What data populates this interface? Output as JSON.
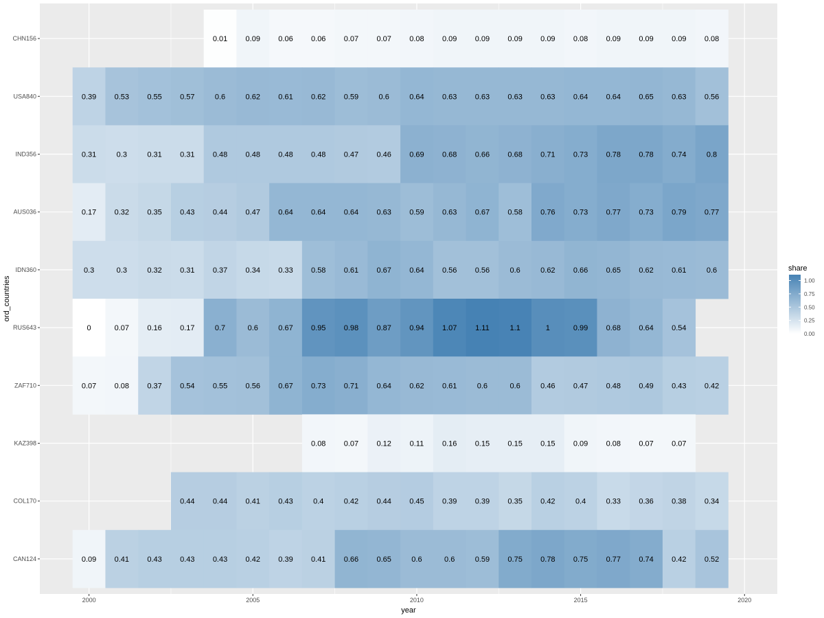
{
  "chart_data": {
    "type": "heatmap",
    "xlabel": "year",
    "ylabel": "ord_countries",
    "xlim": [
      1998.5,
      2021
    ],
    "x_ticks": [
      2000,
      2005,
      2010,
      2015,
      2020
    ],
    "years": [
      2000,
      2001,
      2002,
      2003,
      2004,
      2005,
      2006,
      2007,
      2008,
      2009,
      2010,
      2011,
      2012,
      2013,
      2014,
      2015,
      2016,
      2017,
      2018,
      2019
    ],
    "rows": [
      {
        "name": "CHN156",
        "values": [
          null,
          null,
          null,
          null,
          0.01,
          0.09,
          0.06,
          0.06,
          0.07,
          0.07,
          0.08,
          0.09,
          0.09,
          0.09,
          0.09,
          0.08,
          0.09,
          0.09,
          0.09,
          0.08
        ]
      },
      {
        "name": "USA840",
        "values": [
          0.39,
          0.53,
          0.55,
          0.57,
          0.6,
          0.62,
          0.61,
          0.62,
          0.59,
          0.6,
          0.64,
          0.63,
          0.63,
          0.63,
          0.63,
          0.64,
          0.64,
          0.65,
          0.63,
          0.56
        ]
      },
      {
        "name": "IND356",
        "values": [
          0.31,
          0.3,
          0.31,
          0.31,
          0.48,
          0.48,
          0.48,
          0.48,
          0.47,
          0.46,
          0.69,
          0.68,
          0.66,
          0.68,
          0.71,
          0.73,
          0.78,
          0.78,
          0.74,
          0.8
        ]
      },
      {
        "name": "AUS036",
        "values": [
          0.17,
          0.32,
          0.35,
          0.43,
          0.44,
          0.47,
          0.64,
          0.64,
          0.64,
          0.63,
          0.59,
          0.63,
          0.67,
          0.58,
          0.76,
          0.73,
          0.77,
          0.73,
          0.79,
          0.77
        ]
      },
      {
        "name": "IDN360",
        "values": [
          0.3,
          0.3,
          0.32,
          0.31,
          0.37,
          0.34,
          0.33,
          0.58,
          0.61,
          0.67,
          0.64,
          0.56,
          0.56,
          0.6,
          0.62,
          0.66,
          0.65,
          0.62,
          0.61,
          0.6
        ]
      },
      {
        "name": "RUS643",
        "values": [
          0,
          0.07,
          0.16,
          0.17,
          0.7,
          0.6,
          0.67,
          0.95,
          0.98,
          0.87,
          0.94,
          1.07,
          1.11,
          1.1,
          1,
          0.99,
          0.68,
          0.64,
          0.54,
          null
        ]
      },
      {
        "name": "ZAF710",
        "values": [
          0.07,
          0.08,
          0.37,
          0.54,
          0.55,
          0.56,
          0.67,
          0.73,
          0.71,
          0.64,
          0.62,
          0.61,
          0.6,
          0.6,
          0.46,
          0.47,
          0.48,
          0.49,
          0.43,
          0.42
        ]
      },
      {
        "name": "KAZ398",
        "values": [
          null,
          null,
          null,
          null,
          null,
          null,
          null,
          0.08,
          0.07,
          0.12,
          0.11,
          0.16,
          0.15,
          0.15,
          0.15,
          0.09,
          0.08,
          0.07,
          0.07,
          null
        ]
      },
      {
        "name": "COL170",
        "values": [
          null,
          null,
          null,
          0.44,
          0.44,
          0.41,
          0.43,
          0.4,
          0.42,
          0.44,
          0.45,
          0.39,
          0.39,
          0.35,
          0.42,
          0.4,
          0.33,
          0.36,
          0.38,
          0.34
        ]
      },
      {
        "name": "CAN124",
        "values": [
          0.09,
          0.41,
          0.43,
          0.43,
          0.43,
          0.42,
          0.39,
          0.41,
          0.66,
          0.65,
          0.6,
          0.6,
          0.59,
          0.75,
          0.78,
          0.75,
          0.77,
          0.74,
          0.42,
          0.52
        ]
      }
    ],
    "legend": {
      "title": "share",
      "position": "right",
      "range": [
        0,
        1.11
      ],
      "ticks": [
        1.0,
        0.75,
        0.5,
        0.25,
        0.0
      ],
      "tick_labels": [
        "1.00",
        "0.75",
        "0.50",
        "0.25",
        "0.00"
      ],
      "low_color": "#ffffff",
      "high_color": "#4682b4"
    },
    "panel_background": "#ebebeb",
    "grid_color": "#ffffff",
    "grid": true
  }
}
